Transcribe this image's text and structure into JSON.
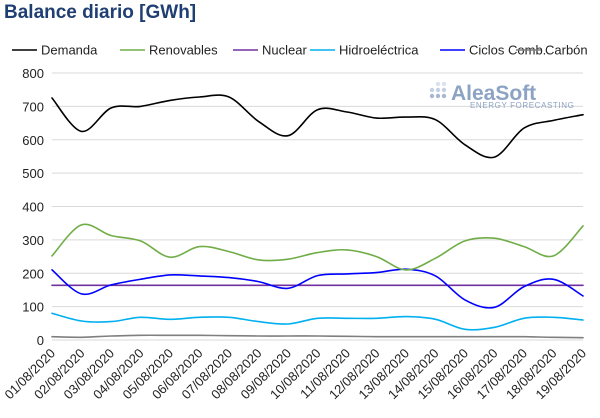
{
  "header": {
    "title": "Balance diario [GWh]"
  },
  "logo": {
    "name": "AleaSoft",
    "tagline": "ENERGY FORECASTING"
  },
  "chart_data": {
    "type": "line",
    "title": "Balance diario [GWh]",
    "xlabel": "",
    "ylabel": "",
    "ylim": [
      0,
      800
    ],
    "yticks": [
      0,
      100,
      200,
      300,
      400,
      500,
      600,
      700,
      800
    ],
    "grid": "horizontal",
    "legend_position": "top",
    "categories": [
      "01/08/2020",
      "02/08/2020",
      "03/08/2020",
      "04/08/2020",
      "05/08/2020",
      "06/08/2020",
      "07/08/2020",
      "08/08/2020",
      "09/08/2020",
      "10/08/2020",
      "11/08/2020",
      "12/08/2020",
      "13/08/2020",
      "14/08/2020",
      "15/08/2020",
      "16/08/2020",
      "17/08/2020",
      "18/08/2020",
      "19/08/2020"
    ],
    "series": [
      {
        "name": "Demanda",
        "color": "#000000",
        "values": [
          725,
          625,
          695,
          700,
          718,
          728,
          728,
          655,
          612,
          690,
          683,
          665,
          668,
          660,
          585,
          548,
          635,
          658,
          675
        ]
      },
      {
        "name": "Renovables",
        "color": "#70ad47",
        "values": [
          252,
          345,
          313,
          297,
          248,
          280,
          265,
          240,
          242,
          262,
          270,
          250,
          210,
          245,
          297,
          305,
          280,
          252,
          342
        ]
      },
      {
        "name": "Nuclear",
        "color": "#7030a0",
        "values": [
          164,
          164,
          164,
          164,
          164,
          164,
          164,
          164,
          164,
          164,
          164,
          164,
          164,
          164,
          164,
          164,
          164,
          164,
          164
        ]
      },
      {
        "name": "Hidroeléctrica",
        "color": "#00b0f0",
        "values": [
          80,
          57,
          55,
          68,
          62,
          68,
          68,
          55,
          48,
          65,
          65,
          65,
          70,
          62,
          32,
          38,
          65,
          68,
          60
        ]
      },
      {
        "name": "Ciclos Comb.",
        "color": "#0000ff",
        "values": [
          210,
          138,
          165,
          182,
          195,
          192,
          187,
          175,
          155,
          193,
          198,
          202,
          212,
          192,
          120,
          98,
          160,
          182,
          132
        ]
      },
      {
        "name": "Carbón",
        "color": "#7f7f7f",
        "values": [
          10,
          8,
          12,
          14,
          14,
          14,
          13,
          12,
          12,
          12,
          11,
          10,
          10,
          10,
          10,
          10,
          10,
          8,
          7
        ]
      }
    ]
  }
}
